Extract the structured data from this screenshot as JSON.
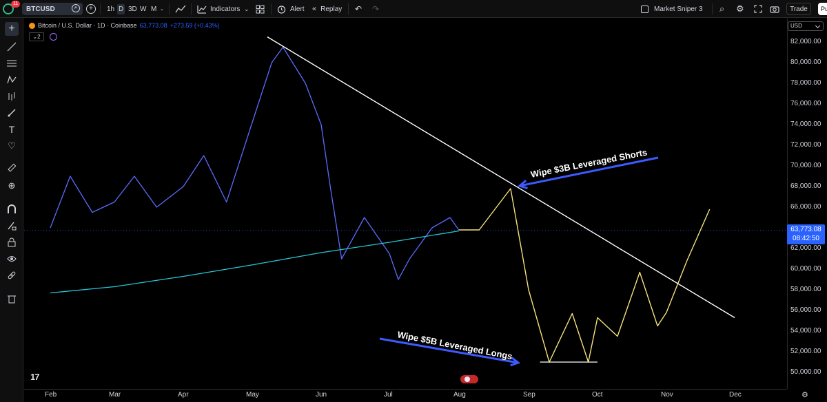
{
  "toolbar": {
    "notification_count": "11",
    "symbol": "BTCUSD",
    "timeframes": [
      "1h",
      "D",
      "3D",
      "W",
      "M"
    ],
    "active_timeframe": "D",
    "indicators_label": "Indicators",
    "alert_label": "Alert",
    "replay_label": "Replay",
    "layout_name": "Market Sniper 3",
    "trade_label": "Trade",
    "publish_label": "Pu"
  },
  "legend": {
    "title": "Bitcoin / U.S. Dollar · 1D · Coinbase",
    "price": "63,773.08",
    "change": "+273.59 (+0.43%)",
    "indicator_count": "2"
  },
  "price_axis": {
    "currency": "USD",
    "labels": [
      "82,000.00",
      "80,000.00",
      "78,000.00",
      "76,000.00",
      "74,000.00",
      "72,000.00",
      "70,000.00",
      "68,000.00",
      "66,000.00",
      "62,000.00",
      "60,000.00",
      "58,000.00",
      "56,000.00",
      "54,000.00",
      "52,000.00",
      "50,000.00"
    ],
    "current_price": "63,773.08",
    "countdown": "08:42:50"
  },
  "time_axis": {
    "labels": [
      "Feb",
      "Mar",
      "Apr",
      "May",
      "Jun",
      "Jul",
      "Aug",
      "Sep",
      "Oct",
      "Nov",
      "Dec"
    ]
  },
  "annotations": {
    "shorts": "Wipe $3B Leveraged Shorts",
    "longs": "Wipe $5B Leveraged Longs"
  },
  "chart_data": {
    "type": "line",
    "ylim": [
      50000,
      82000
    ],
    "series": [
      {
        "name": "",
        "color": "#5b6cff",
        "points": [
          [
            "Feb 1",
            64000
          ],
          [
            "Feb 10",
            69000
          ],
          [
            "Feb 20",
            65500
          ],
          [
            "Mar 1",
            66500
          ],
          [
            "Mar 10",
            69000
          ],
          [
            "Mar 20",
            66000
          ],
          [
            "Apr 1",
            68000
          ],
          [
            "Apr 10",
            71000
          ],
          [
            "Apr 20",
            66500
          ],
          [
            "May 1",
            74000
          ],
          [
            "May 10",
            80000
          ],
          [
            "May 15",
            81500
          ],
          [
            "May 25",
            78000
          ],
          [
            "Jun 1",
            74000
          ],
          [
            "Jun 5",
            68000
          ],
          [
            "Jun 10",
            61000
          ],
          [
            "Jun 20",
            65000
          ],
          [
            "Jul 1",
            61500
          ],
          [
            "Jul 5",
            59000
          ],
          [
            "Jul 10",
            61000
          ],
          [
            "Jul 20",
            64000
          ],
          [
            "Jul 28",
            65000
          ],
          [
            "Aug 1",
            63773
          ]
        ]
      },
      {
        "name": "",
        "color": "#26c6da",
        "points": [
          [
            "Feb 1",
            57700
          ],
          [
            "Mar 1",
            58300
          ],
          [
            "Apr 1",
            59300
          ],
          [
            "May 1",
            60400
          ],
          [
            "Jun 1",
            61600
          ],
          [
            "Jul 1",
            62600
          ],
          [
            "Aug 1",
            63700
          ]
        ]
      },
      {
        "name": "",
        "color": "#f5e27a",
        "points": [
          [
            "Aug 1",
            63800
          ],
          [
            "Aug 10",
            63800
          ],
          [
            "Aug 24",
            67800
          ],
          [
            "Sep 1",
            58000
          ],
          [
            "Sep 10",
            51000
          ],
          [
            "Sep 20",
            55700
          ],
          [
            "Sep 27",
            51000
          ],
          [
            "Oct 1",
            55300
          ],
          [
            "Oct 10",
            53500
          ],
          [
            "Oct 20",
            59700
          ],
          [
            "Oct 28",
            54500
          ],
          [
            "Nov 1",
            55800
          ],
          [
            "Nov 10",
            60800
          ],
          [
            "Nov 20",
            65800
          ]
        ]
      },
      {
        "name": "",
        "color": "#ffffff",
        "points": [
          [
            "May 8",
            82500
          ],
          [
            "Dec 1",
            55300
          ]
        ]
      }
    ]
  }
}
